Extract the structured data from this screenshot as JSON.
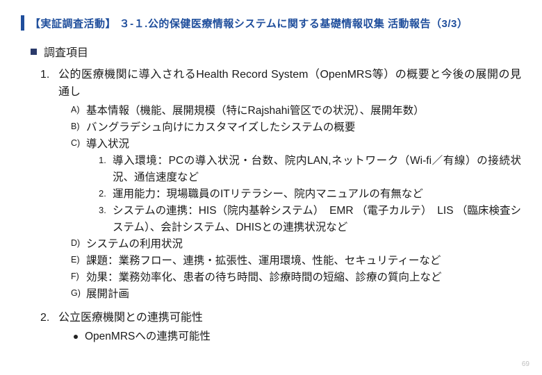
{
  "title": "【実証調査活動】 ３-１.公的保健医療情報システムに関する基礎情報収集 活動報告（3/3）",
  "section_heading": "調査項目",
  "items": [
    {
      "text": "公的医療機関に導入されるHealth Record System（OpenMRS等）の概要と今後の展開の見通し",
      "alpha": [
        {
          "text": "基本情報（機能、展開規模（特にRajshahi管区での状況）、展開年数）"
        },
        {
          "text": "バングラデシュ向けにカスタマイズしたシステムの概要"
        },
        {
          "text": "導入状況",
          "nums": [
            "導入環境：PCの導入状況・台数、院内LAN,ネットワーク（Wi-fi／有線）の接続状況、通信速度など",
            "運用能力：現場職員のITリテラシー、院内マニュアルの有無など",
            "システムの連携：HIS（院内基幹システム）　EMR （電子カルテ）　LIS （臨床検査システム）、会計システム、DHISとの連携状況など"
          ]
        },
        {
          "text": "システムの利用状況"
        },
        {
          "text": "課題：業務フロー、連携・拡張性、運用環境、性能、セキュリティーなど"
        },
        {
          "text": "効果：業務効率化、患者の待ち時間、診療時間の短縮、診療の質向上など"
        },
        {
          "text": "展開計画"
        }
      ]
    },
    {
      "text": "公立医療機関との連携可能性",
      "dots": [
        "OpenMRSへの連携可能性"
      ]
    }
  ],
  "page_number": "69",
  "colors": {
    "title": "#1f4e9c",
    "bullet": "#2a3a6a",
    "text": "#1a1a1a",
    "pagenum": "#bfbfbf",
    "bg": "#ffffff"
  }
}
